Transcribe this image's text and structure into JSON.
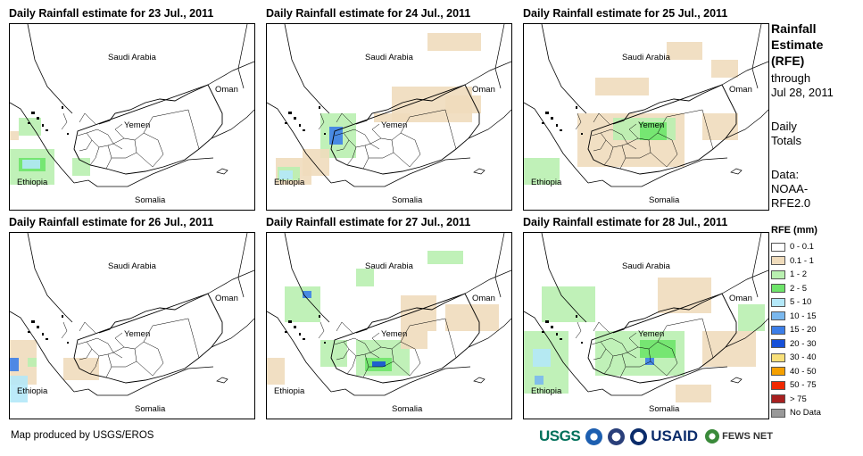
{
  "panels": [
    {
      "title": "Daily Rainfall estimate for 23 Jul., 2011",
      "day": 23
    },
    {
      "title": "Daily Rainfall estimate for 24 Jul., 2011",
      "day": 24
    },
    {
      "title": "Daily Rainfall estimate for 25 Jul., 2011",
      "day": 25
    },
    {
      "title": "Daily Rainfall estimate for 26 Jul., 2011",
      "day": 26
    },
    {
      "title": "Daily Rainfall estimate for 27 Jul., 2011",
      "day": 27
    },
    {
      "title": "Daily Rainfall estimate for 28 Jul., 2011",
      "day": 28
    }
  ],
  "places": {
    "saudi": "Saudi Arabia",
    "yemen": "Yemen",
    "oman": "Oman",
    "ethiopia": "Ethiopia",
    "somalia": "Somalia"
  },
  "sidebar": {
    "title_l1": "Rainfall",
    "title_l2": "Estimate",
    "title_l3": "(RFE)",
    "through": "through",
    "date": "Jul 28, 2011",
    "daily_l1": "Daily",
    "daily_l2": "Totals",
    "data_l1": "Data:",
    "data_l2": "NOAA-",
    "data_l3": "RFE2.0"
  },
  "legend": {
    "title": "RFE (mm)",
    "items": [
      {
        "label": "0 - 0.1",
        "color": "#ffffff"
      },
      {
        "label": "0.1 - 1",
        "color": "#f0dcbc"
      },
      {
        "label": "1 - 2",
        "color": "#b9f0b0"
      },
      {
        "label": "2 - 5",
        "color": "#6ee46a"
      },
      {
        "label": "5 - 10",
        "color": "#b4e8f8"
      },
      {
        "label": "10 - 15",
        "color": "#7ab8ee"
      },
      {
        "label": "15 - 20",
        "color": "#3c7ee8"
      },
      {
        "label": "20 - 30",
        "color": "#1650d8"
      },
      {
        "label": "30 - 40",
        "color": "#f8e07a"
      },
      {
        "label": "40 - 50",
        "color": "#f5a000"
      },
      {
        "label": "50 - 75",
        "color": "#f02800"
      },
      {
        "label": "> 75",
        "color": "#a82020"
      },
      {
        "label": "No Data",
        "color": "#999999"
      }
    ]
  },
  "footer": {
    "credit": "Map produced by USGS/EROS",
    "usgs": "USGS",
    "usaid": "USAID",
    "fews": "FEWS NET"
  }
}
